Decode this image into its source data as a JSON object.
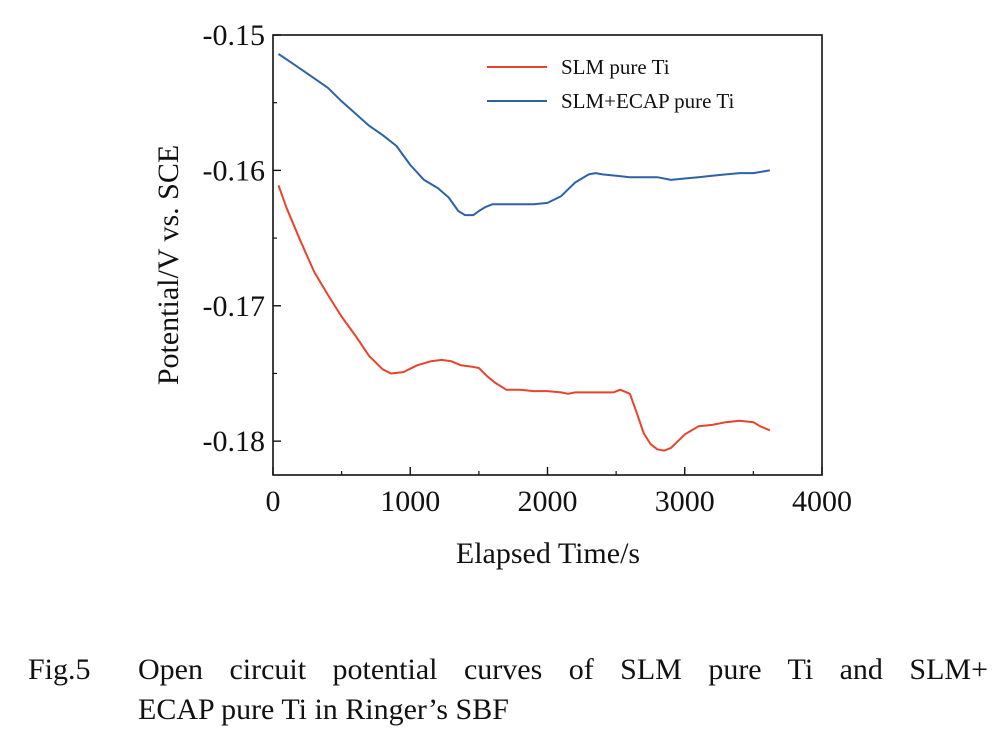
{
  "chart_data": {
    "type": "line",
    "title": "",
    "xlabel": "Elapsed Time/s",
    "ylabel": "Potential/V vs. SCE",
    "xlim": [
      0,
      4000
    ],
    "ylim": [
      -0.1825,
      -0.15
    ],
    "x_ticks": [
      0,
      1000,
      2000,
      3000,
      4000
    ],
    "x_tick_labels": [
      "0",
      "1000",
      "2000",
      "3000",
      "4000"
    ],
    "y_ticks": [
      -0.15,
      -0.16,
      -0.17,
      -0.18
    ],
    "y_tick_labels": [
      "-0.15",
      "-0.16",
      "-0.17",
      "-0.18"
    ],
    "grid": false,
    "legend_position": "top-right",
    "series": [
      {
        "name": "SLM pure Ti",
        "color": "#e8432d",
        "x": [
          40,
          100,
          200,
          300,
          400,
          500,
          600,
          700,
          800,
          860,
          950,
          1050,
          1150,
          1230,
          1300,
          1370,
          1450,
          1500,
          1560,
          1620,
          1700,
          1800,
          1900,
          2000,
          2100,
          2150,
          2200,
          2300,
          2400,
          2480,
          2530,
          2600,
          2650,
          2700,
          2750,
          2800,
          2850,
          2900,
          2950,
          3000,
          3100,
          3200,
          3300,
          3400,
          3500,
          3550,
          3620
        ],
        "values": [
          -0.1611,
          -0.1628,
          -0.1652,
          -0.1675,
          -0.1692,
          -0.1708,
          -0.1722,
          -0.1737,
          -0.1747,
          -0.175,
          -0.1749,
          -0.1744,
          -0.1741,
          -0.174,
          -0.1741,
          -0.1744,
          -0.1745,
          -0.1746,
          -0.1752,
          -0.1757,
          -0.1762,
          -0.1762,
          -0.1763,
          -0.1763,
          -0.1764,
          -0.1765,
          -0.1764,
          -0.1764,
          -0.1764,
          -0.1764,
          -0.1762,
          -0.1765,
          -0.1779,
          -0.1794,
          -0.1802,
          -0.1806,
          -0.1807,
          -0.1805,
          -0.18,
          -0.1795,
          -0.1789,
          -0.1788,
          -0.1786,
          -0.1785,
          -0.1786,
          -0.1789,
          -0.1792
        ]
      },
      {
        "name": "SLM+ECAP pure Ti",
        "color": "#2e62a7",
        "x": [
          40,
          100,
          200,
          300,
          400,
          500,
          600,
          700,
          800,
          900,
          1000,
          1100,
          1200,
          1280,
          1350,
          1400,
          1460,
          1500,
          1550,
          1600,
          1700,
          1800,
          1900,
          2000,
          2100,
          2150,
          2200,
          2250,
          2300,
          2350,
          2400,
          2500,
          2600,
          2700,
          2800,
          2900,
          3000,
          3100,
          3200,
          3300,
          3400,
          3500,
          3620
        ],
        "values": [
          -0.1514,
          -0.1518,
          -0.1525,
          -0.1532,
          -0.1539,
          -0.1549,
          -0.1558,
          -0.1567,
          -0.1574,
          -0.1582,
          -0.1596,
          -0.1607,
          -0.1613,
          -0.162,
          -0.163,
          -0.1633,
          -0.1633,
          -0.163,
          -0.1627,
          -0.1625,
          -0.1625,
          -0.1625,
          -0.1625,
          -0.1624,
          -0.1619,
          -0.1614,
          -0.1609,
          -0.1606,
          -0.1603,
          -0.1602,
          -0.1603,
          -0.1604,
          -0.1605,
          -0.1605,
          -0.1605,
          -0.1607,
          -0.1606,
          -0.1605,
          -0.1604,
          -0.1603,
          -0.1602,
          -0.1602,
          -0.16
        ]
      }
    ]
  },
  "caption": {
    "number": "Fig.5",
    "line1": "Open circuit potential curves of SLM pure Ti and SLM+",
    "line2": "ECAP pure Ti in Ringer’s SBF"
  }
}
